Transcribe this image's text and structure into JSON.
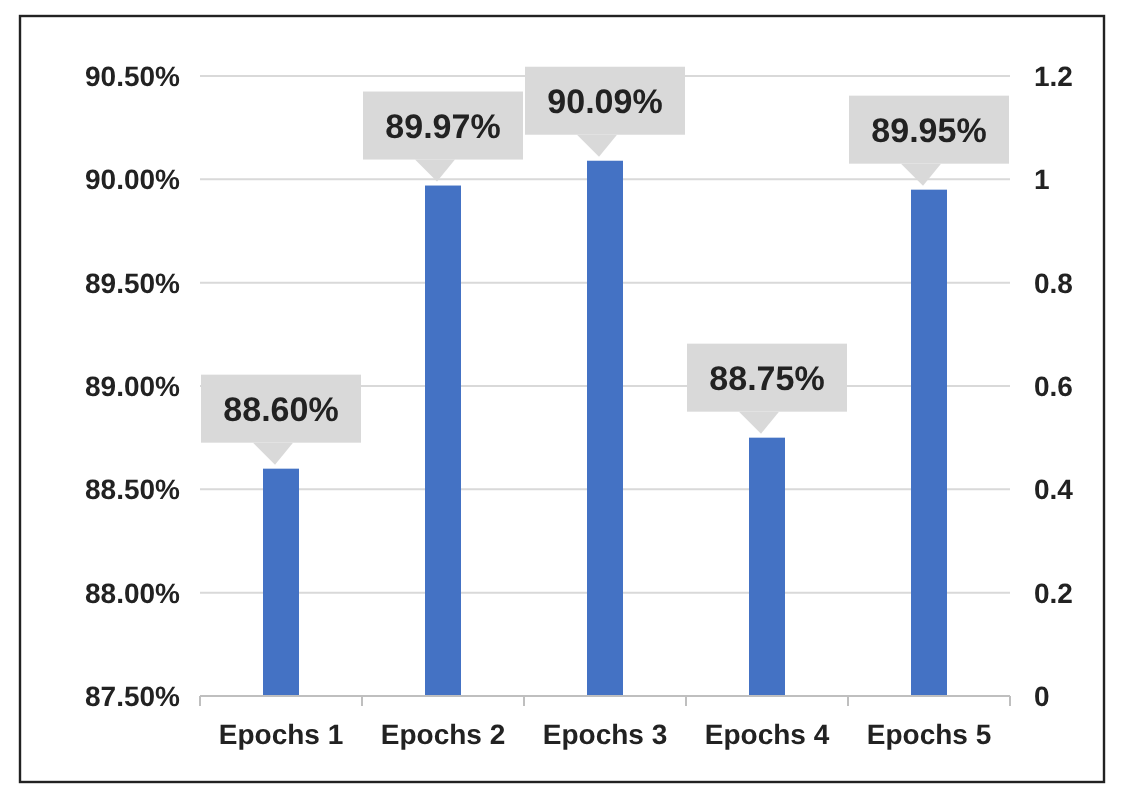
{
  "chart_data": {
    "type": "bar",
    "categories": [
      "Epochs 1",
      "Epochs 2",
      "Epochs 3",
      "Epochs 4",
      "Epochs 5"
    ],
    "values": [
      88.6,
      89.97,
      90.09,
      88.75,
      89.95
    ],
    "color": "#4472c4",
    "value_labels": [
      "88.60%",
      "89.97%",
      "90.09%",
      "88.75%",
      "89.95%"
    ],
    "ylim": [
      87.5,
      90.5
    ],
    "yticks": [
      {
        "value": 87.5,
        "label": "87.50%"
      },
      {
        "value": 88,
        "label": "88.00%"
      },
      {
        "value": 88.5,
        "label": "88.50%"
      },
      {
        "value": 89,
        "label": "89.00%"
      },
      {
        "value": 89.5,
        "label": "89.50%"
      },
      {
        "value": 90,
        "label": "90.00%"
      },
      {
        "value": 90.5,
        "label": "90.50%"
      }
    ],
    "y2lim": [
      0,
      1.2
    ],
    "y2ticks": [
      0,
      0.2,
      0.4,
      0.6,
      0.8,
      1,
      1.2
    ],
    "grid": "y"
  }
}
